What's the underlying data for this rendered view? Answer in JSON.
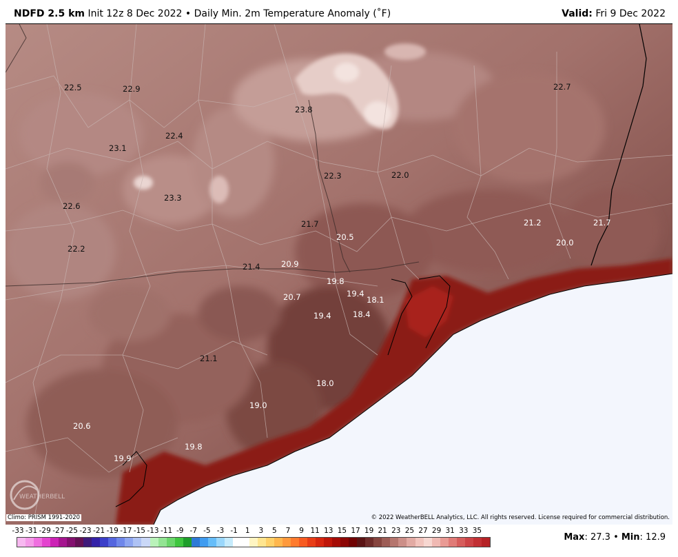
{
  "header": {
    "model": "NDFD 2.5 km",
    "init": "Init 12z 8 Dec 2022",
    "bullet": "•",
    "product": "Daily Min. 2m Temperature Anomaly (˚F)",
    "valid_label": "Valid:",
    "valid_date": "Fri 9 Dec 2022"
  },
  "map": {
    "colors": {
      "land_light": "#b58a84",
      "land_mid": "#9e6c66",
      "land_dark": "#7a3f3a",
      "coastal_red": "#8b1a15",
      "pale": "#e8cfcb",
      "water": "#f3f6fd",
      "county_lines": "#c9b6b3"
    },
    "labels": [
      {
        "text": "22.5"
      },
      {
        "text": "22.9"
      },
      {
        "text": "23.8"
      },
      {
        "text": "22.7"
      },
      {
        "text": "22.4"
      },
      {
        "text": "23.1"
      },
      {
        "text": "22.3"
      },
      {
        "text": "22.0"
      },
      {
        "text": "22.6"
      },
      {
        "text": "23.3"
      },
      {
        "text": "21.7"
      },
      {
        "text": "20.5"
      },
      {
        "text": "21.2"
      },
      {
        "text": "21.7"
      },
      {
        "text": "22.2"
      },
      {
        "text": "20.0"
      },
      {
        "text": "21.4"
      },
      {
        "text": "20.9"
      },
      {
        "text": "19.8"
      },
      {
        "text": "19.4"
      },
      {
        "text": "18.1"
      },
      {
        "text": "20.7"
      },
      {
        "text": "19.4"
      },
      {
        "text": "18.4"
      },
      {
        "text": "21.1"
      },
      {
        "text": "18.0"
      },
      {
        "text": "19.0"
      },
      {
        "text": "20.6"
      },
      {
        "text": "19.8"
      },
      {
        "text": "19.9"
      }
    ]
  },
  "footer": {
    "climo": "Climo: PRISM 1991-2020",
    "copyright": "© 2022 WeatherBELL Analytics, LLC. All rights reserved. License required for commercial distribution.",
    "logo_text": "WEATHERBELL",
    "max_label": "Max",
    "max_value": ": 27.3",
    "bullet": "•",
    "min_label": "Min",
    "min_value": ": 12.9"
  },
  "colorbar": {
    "ticks": [
      "-33",
      "-31",
      "-29",
      "-27",
      "-25",
      "-23",
      "-21",
      "-19",
      "-17",
      "-15",
      "-13",
      "-11",
      "-9",
      "-7",
      "-5",
      "-3",
      "-1",
      "1",
      "3",
      "5",
      "7",
      "9",
      "11",
      "13",
      "15",
      "17",
      "19",
      "21",
      "23",
      "25",
      "27",
      "29",
      "31",
      "33",
      "35"
    ],
    "colors": [
      "#f7b8f0",
      "#f49ae8",
      "#ef6fdf",
      "#e444cf",
      "#cc22b5",
      "#a5158f",
      "#83106f",
      "#641055",
      "#3f1a7a",
      "#3422a8",
      "#3b3fc9",
      "#5466df",
      "#6f87ea",
      "#8ea6f1",
      "#aec2f4",
      "#cad8f7",
      "#b9f2b9",
      "#93e493",
      "#6bd66b",
      "#3fc63f",
      "#1f9e2b",
      "#2e7ad6",
      "#3f9cf0",
      "#66bdf8",
      "#9ad7fb",
      "#c6ebfc",
      "#ffffff",
      "#ffffff",
      "#fff5c2",
      "#ffe58f",
      "#ffd169",
      "#ffb74d",
      "#ff9a3c",
      "#ff7b2d",
      "#f75b21",
      "#e83d17",
      "#d6260f",
      "#bf1609",
      "#a50c06",
      "#8c0604",
      "#700303",
      "#5a1414",
      "#6e2c2a",
      "#86453f",
      "#9d5d56",
      "#b5766e",
      "#cc8f88",
      "#e2aaa3",
      "#f2c4bd",
      "#f7d7d1",
      "#f0b9b3",
      "#e99a94",
      "#e07b77",
      "#d65d5c",
      "#cc4346",
      "#c23034",
      "#b52226"
    ]
  }
}
